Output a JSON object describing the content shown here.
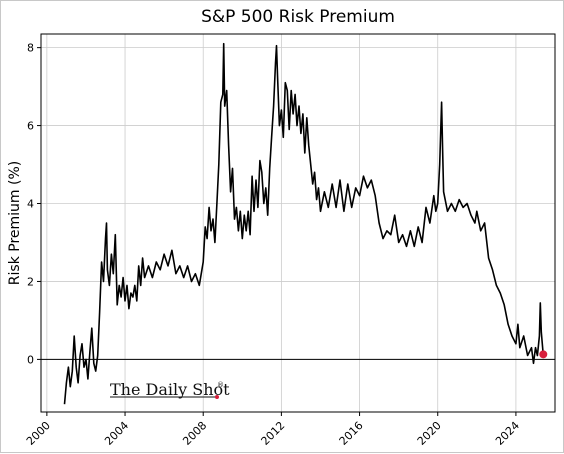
{
  "chart_data": {
    "type": "line",
    "title": "S&P 500 Risk Premium",
    "xlabel": "",
    "ylabel": "Risk Premium (%)",
    "xlim": [
      1999.7,
      2026.0
    ],
    "ylim": [
      -1.35,
      8.35
    ],
    "xticks": [
      2000,
      2004,
      2008,
      2012,
      2016,
      2020,
      2024
    ],
    "yticks": [
      0,
      2,
      4,
      6,
      8
    ],
    "grid": true,
    "reference_line": 0,
    "line_color": "#000000",
    "marker_color": "#d81f3c",
    "series": [
      {
        "points": [
          [
            2000.9,
            -1.15
          ],
          [
            2001.0,
            -0.6
          ],
          [
            2001.1,
            -0.2
          ],
          [
            2001.2,
            -0.7
          ],
          [
            2001.3,
            -0.3
          ],
          [
            2001.4,
            0.6
          ],
          [
            2001.5,
            -0.2
          ],
          [
            2001.6,
            -0.6
          ],
          [
            2001.7,
            0.1
          ],
          [
            2001.8,
            0.4
          ],
          [
            2001.9,
            -0.2
          ],
          [
            2002.0,
            0.0
          ],
          [
            2002.1,
            -0.5
          ],
          [
            2002.2,
            0.2
          ],
          [
            2002.3,
            0.8
          ],
          [
            2002.4,
            -0.1
          ],
          [
            2002.5,
            -0.3
          ],
          [
            2002.6,
            0.1
          ],
          [
            2002.7,
            1.2
          ],
          [
            2002.8,
            2.5
          ],
          [
            2002.9,
            2.0
          ],
          [
            2003.0,
            3.1
          ],
          [
            2003.05,
            3.5
          ],
          [
            2003.1,
            2.3
          ],
          [
            2003.2,
            1.9
          ],
          [
            2003.3,
            2.7
          ],
          [
            2003.4,
            2.2
          ],
          [
            2003.5,
            3.2
          ],
          [
            2003.6,
            1.4
          ],
          [
            2003.7,
            1.9
          ],
          [
            2003.8,
            1.6
          ],
          [
            2003.9,
            2.1
          ],
          [
            2004.0,
            1.5
          ],
          [
            2004.1,
            1.9
          ],
          [
            2004.2,
            1.3
          ],
          [
            2004.3,
            1.7
          ],
          [
            2004.4,
            1.6
          ],
          [
            2004.5,
            1.9
          ],
          [
            2004.6,
            1.5
          ],
          [
            2004.7,
            2.4
          ],
          [
            2004.8,
            1.9
          ],
          [
            2004.9,
            2.6
          ],
          [
            2005.0,
            2.1
          ],
          [
            2005.2,
            2.4
          ],
          [
            2005.4,
            2.1
          ],
          [
            2005.6,
            2.5
          ],
          [
            2005.8,
            2.3
          ],
          [
            2006.0,
            2.7
          ],
          [
            2006.2,
            2.4
          ],
          [
            2006.4,
            2.8
          ],
          [
            2006.6,
            2.2
          ],
          [
            2006.8,
            2.4
          ],
          [
            2007.0,
            2.1
          ],
          [
            2007.2,
            2.4
          ],
          [
            2007.4,
            2.0
          ],
          [
            2007.6,
            2.2
          ],
          [
            2007.8,
            1.9
          ],
          [
            2008.0,
            2.5
          ],
          [
            2008.1,
            3.4
          ],
          [
            2008.2,
            3.1
          ],
          [
            2008.3,
            3.9
          ],
          [
            2008.4,
            3.3
          ],
          [
            2008.5,
            3.6
          ],
          [
            2008.6,
            3.0
          ],
          [
            2008.7,
            4.0
          ],
          [
            2008.8,
            5.0
          ],
          [
            2008.9,
            6.6
          ],
          [
            2009.0,
            6.8
          ],
          [
            2009.05,
            8.1
          ],
          [
            2009.1,
            6.5
          ],
          [
            2009.2,
            6.9
          ],
          [
            2009.3,
            5.5
          ],
          [
            2009.4,
            4.3
          ],
          [
            2009.5,
            4.9
          ],
          [
            2009.6,
            3.6
          ],
          [
            2009.7,
            3.9
          ],
          [
            2009.8,
            3.3
          ],
          [
            2009.9,
            3.8
          ],
          [
            2010.0,
            3.1
          ],
          [
            2010.1,
            3.7
          ],
          [
            2010.2,
            3.3
          ],
          [
            2010.3,
            3.8
          ],
          [
            2010.4,
            3.2
          ],
          [
            2010.5,
            4.7
          ],
          [
            2010.6,
            3.8
          ],
          [
            2010.7,
            4.6
          ],
          [
            2010.8,
            3.9
          ],
          [
            2010.9,
            5.1
          ],
          [
            2011.0,
            4.8
          ],
          [
            2011.1,
            4.0
          ],
          [
            2011.2,
            4.4
          ],
          [
            2011.3,
            3.7
          ],
          [
            2011.4,
            4.9
          ],
          [
            2011.5,
            5.7
          ],
          [
            2011.6,
            6.5
          ],
          [
            2011.7,
            7.6
          ],
          [
            2011.75,
            8.05
          ],
          [
            2011.8,
            7.3
          ],
          [
            2011.9,
            6.0
          ],
          [
            2012.0,
            6.4
          ],
          [
            2012.1,
            5.7
          ],
          [
            2012.2,
            7.1
          ],
          [
            2012.3,
            6.9
          ],
          [
            2012.4,
            5.9
          ],
          [
            2012.5,
            6.9
          ],
          [
            2012.6,
            6.3
          ],
          [
            2012.7,
            6.8
          ],
          [
            2012.8,
            6.0
          ],
          [
            2012.9,
            6.5
          ],
          [
            2013.0,
            5.8
          ],
          [
            2013.1,
            6.3
          ],
          [
            2013.2,
            5.3
          ],
          [
            2013.3,
            6.2
          ],
          [
            2013.4,
            5.5
          ],
          [
            2013.5,
            5.0
          ],
          [
            2013.6,
            4.5
          ],
          [
            2013.7,
            4.8
          ],
          [
            2013.8,
            4.1
          ],
          [
            2013.9,
            4.4
          ],
          [
            2014.0,
            3.8
          ],
          [
            2014.2,
            4.3
          ],
          [
            2014.4,
            3.9
          ],
          [
            2014.6,
            4.5
          ],
          [
            2014.8,
            3.9
          ],
          [
            2015.0,
            4.6
          ],
          [
            2015.2,
            3.8
          ],
          [
            2015.4,
            4.5
          ],
          [
            2015.6,
            3.9
          ],
          [
            2015.8,
            4.4
          ],
          [
            2016.0,
            4.2
          ],
          [
            2016.2,
            4.7
          ],
          [
            2016.4,
            4.4
          ],
          [
            2016.6,
            4.6
          ],
          [
            2016.8,
            4.2
          ],
          [
            2017.0,
            3.5
          ],
          [
            2017.2,
            3.1
          ],
          [
            2017.4,
            3.3
          ],
          [
            2017.6,
            3.2
          ],
          [
            2017.8,
            3.7
          ],
          [
            2018.0,
            3.0
          ],
          [
            2018.2,
            3.2
          ],
          [
            2018.4,
            2.9
          ],
          [
            2018.6,
            3.3
          ],
          [
            2018.8,
            2.9
          ],
          [
            2019.0,
            3.4
          ],
          [
            2019.2,
            3.0
          ],
          [
            2019.4,
            3.9
          ],
          [
            2019.6,
            3.5
          ],
          [
            2019.8,
            4.2
          ],
          [
            2019.9,
            3.8
          ],
          [
            2020.0,
            4.0
          ],
          [
            2020.1,
            5.0
          ],
          [
            2020.2,
            6.6
          ],
          [
            2020.25,
            5.4
          ],
          [
            2020.3,
            4.3
          ],
          [
            2020.5,
            3.8
          ],
          [
            2020.7,
            4.0
          ],
          [
            2020.9,
            3.8
          ],
          [
            2021.1,
            4.1
          ],
          [
            2021.3,
            3.9
          ],
          [
            2021.5,
            4.0
          ],
          [
            2021.7,
            3.7
          ],
          [
            2021.9,
            3.5
          ],
          [
            2022.0,
            3.8
          ],
          [
            2022.2,
            3.3
          ],
          [
            2022.4,
            3.5
          ],
          [
            2022.6,
            2.6
          ],
          [
            2022.8,
            2.3
          ],
          [
            2023.0,
            1.9
          ],
          [
            2023.2,
            1.7
          ],
          [
            2023.4,
            1.4
          ],
          [
            2023.6,
            0.9
          ],
          [
            2023.8,
            0.6
          ],
          [
            2024.0,
            0.4
          ],
          [
            2024.1,
            0.9
          ],
          [
            2024.2,
            0.3
          ],
          [
            2024.4,
            0.6
          ],
          [
            2024.6,
            0.1
          ],
          [
            2024.8,
            0.3
          ],
          [
            2024.9,
            -0.1
          ],
          [
            2025.0,
            0.3
          ],
          [
            2025.1,
            0.1
          ],
          [
            2025.2,
            0.6
          ],
          [
            2025.25,
            1.45
          ],
          [
            2025.3,
            0.7
          ],
          [
            2025.35,
            0.4
          ],
          [
            2025.4,
            0.1
          ]
        ],
        "last_point": [
          2025.4,
          0.13
        ]
      }
    ]
  },
  "branding": {
    "logo_text": "The Daily Shot",
    "logo_mark": "®"
  }
}
